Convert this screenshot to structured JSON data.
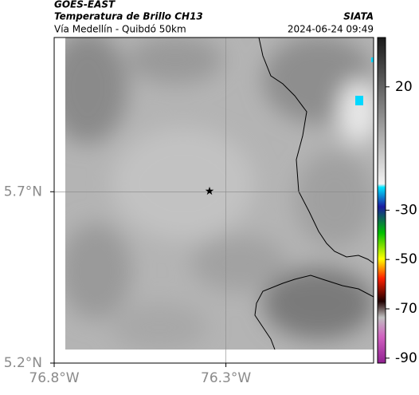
{
  "header": {
    "title": "GOES-EAST",
    "subtitle": "Temperatura de Brillo CH13",
    "route": "Vía Medellín - Quibdó 50km",
    "source": "SIATA",
    "timestamp": "2024-06-24 09:49"
  },
  "map": {
    "xlim": [
      -76.8,
      -75.87
    ],
    "ylim": [
      5.2,
      6.15
    ],
    "xticks": [
      {
        "value": -76.8,
        "label": "76.8°W"
      },
      {
        "value": -76.3,
        "label": "76.3°W"
      }
    ],
    "yticks": [
      {
        "value": 5.2,
        "label": "5.2°N"
      },
      {
        "value": 5.7,
        "label": "5.7°N"
      }
    ],
    "grid": true
  },
  "colorbar": {
    "lim": [
      40,
      -92
    ],
    "ticks": [
      20,
      -30,
      -50,
      -70,
      -90
    ]
  }
}
